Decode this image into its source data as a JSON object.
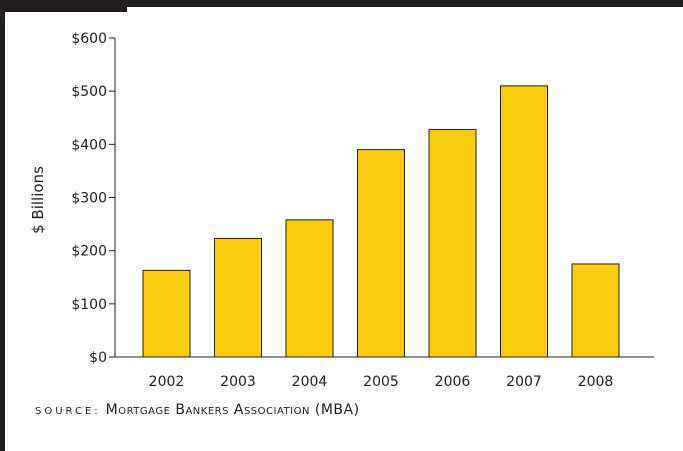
{
  "chart_data": {
    "type": "bar",
    "title": "",
    "xlabel": "",
    "ylabel": "$ Billions",
    "categories": [
      "2002",
      "2003",
      "2004",
      "2005",
      "2006",
      "2007",
      "2008"
    ],
    "values": [
      163,
      223,
      258,
      390,
      428,
      510,
      175
    ],
    "ylim": [
      0,
      600
    ],
    "yticks": [
      0,
      100,
      200,
      300,
      400,
      500,
      600
    ],
    "ytick_labels": [
      "$0",
      "$100",
      "$200",
      "$300",
      "$400",
      "$500",
      "$600"
    ],
    "bar_color": "#fbcc0d",
    "bar_edge_color": "#231f20",
    "grid": false,
    "legend": "none"
  },
  "source": {
    "label": "SOURCE:",
    "text": "Mortgage Bankers Association (MBA)"
  },
  "colors": {
    "frame": "#231f20",
    "axis": "#231f20",
    "background": "#ffffff"
  }
}
